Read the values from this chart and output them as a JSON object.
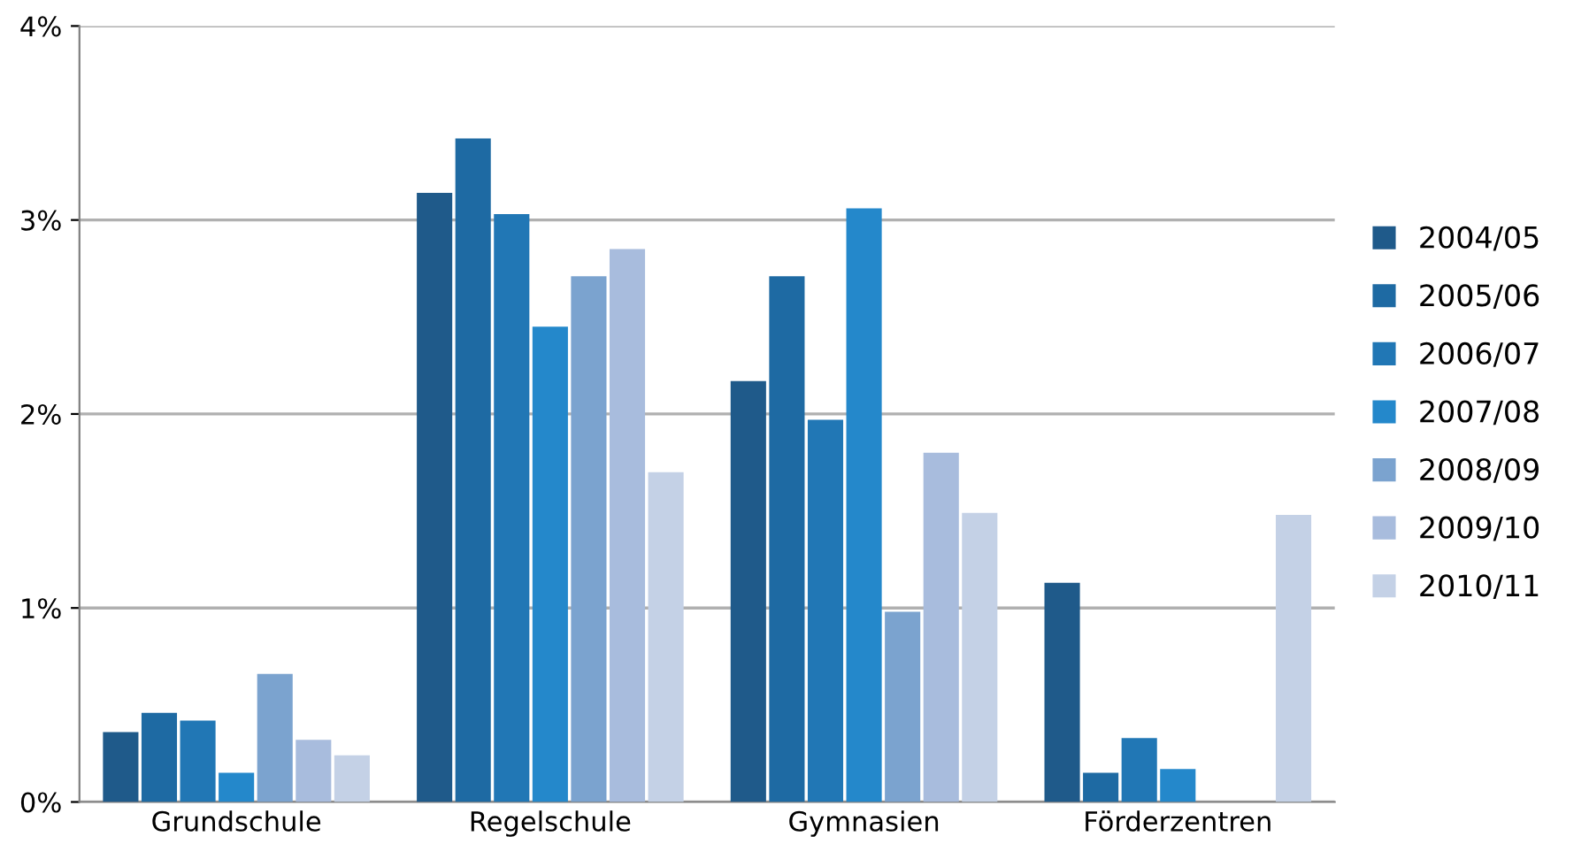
{
  "chart_data": {
    "type": "bar",
    "categories": [
      "Grundschule",
      "Regelschule",
      "Gymnasien",
      "Förderzentren"
    ],
    "series": [
      {
        "name": "2004/05",
        "color": "#1f5a8a",
        "values": [
          0.36,
          3.14,
          2.17,
          1.13
        ]
      },
      {
        "name": "2005/06",
        "color": "#1e6aa3",
        "values": [
          0.46,
          3.42,
          2.71,
          0.15
        ]
      },
      {
        "name": "2006/07",
        "color": "#2177b5",
        "values": [
          0.42,
          3.03,
          1.97,
          0.33
        ]
      },
      {
        "name": "2007/08",
        "color": "#2488cb",
        "values": [
          0.15,
          2.45,
          3.06,
          0.17
        ]
      },
      {
        "name": "2008/09",
        "color": "#7ba3cf",
        "values": [
          0.66,
          2.71,
          0.98,
          null
        ]
      },
      {
        "name": "2009/10",
        "color": "#a8bcdd",
        "values": [
          0.32,
          2.85,
          1.8,
          null
        ]
      },
      {
        "name": "2010/11",
        "color": "#c4d1e6",
        "values": [
          0.24,
          1.7,
          1.49,
          1.48
        ]
      }
    ],
    "ylim": [
      0,
      4
    ],
    "yticks": [
      {
        "value": 0,
        "label": "0%"
      },
      {
        "value": 1,
        "label": "1%"
      },
      {
        "value": 2,
        "label": "2%"
      },
      {
        "value": 3,
        "label": "3%"
      },
      {
        "value": 4,
        "label": "4%"
      }
    ],
    "grid": "y",
    "legend": "right"
  }
}
